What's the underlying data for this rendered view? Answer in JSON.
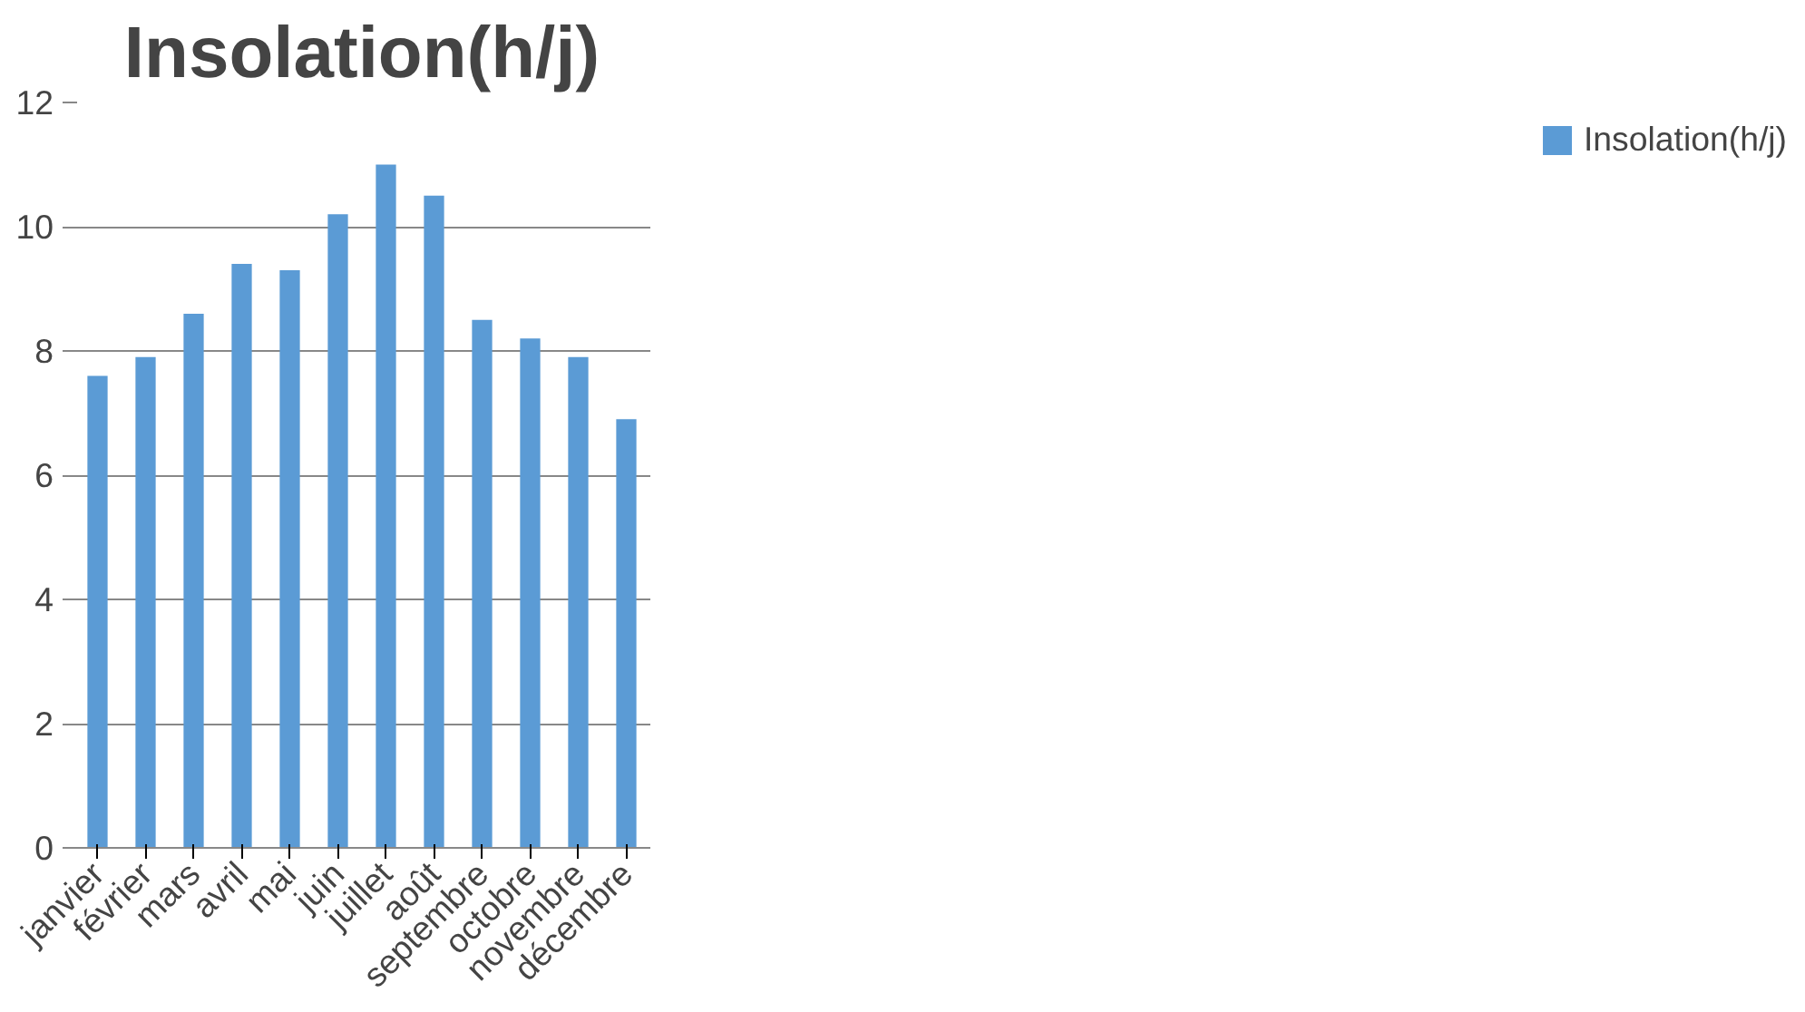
{
  "chart_data": {
    "type": "bar",
    "title": "Insolation(h/j)",
    "categories": [
      "janvier",
      "février",
      "mars",
      "avril",
      "mai",
      "juin",
      "juillet",
      "août",
      "septembre",
      "octobre",
      "novembre",
      "décembre"
    ],
    "series": [
      {
        "name": "Insolation(h/j)",
        "color": "#5b9bd5",
        "values": [
          7.6,
          7.9,
          8.6,
          9.4,
          9.3,
          10.2,
          11.0,
          10.5,
          8.5,
          8.2,
          7.9,
          6.9
        ]
      }
    ],
    "ylim": [
      0,
      12
    ],
    "yticks": [
      0,
      2,
      4,
      6,
      8,
      10,
      12
    ],
    "grid": "y",
    "legend": "right"
  }
}
